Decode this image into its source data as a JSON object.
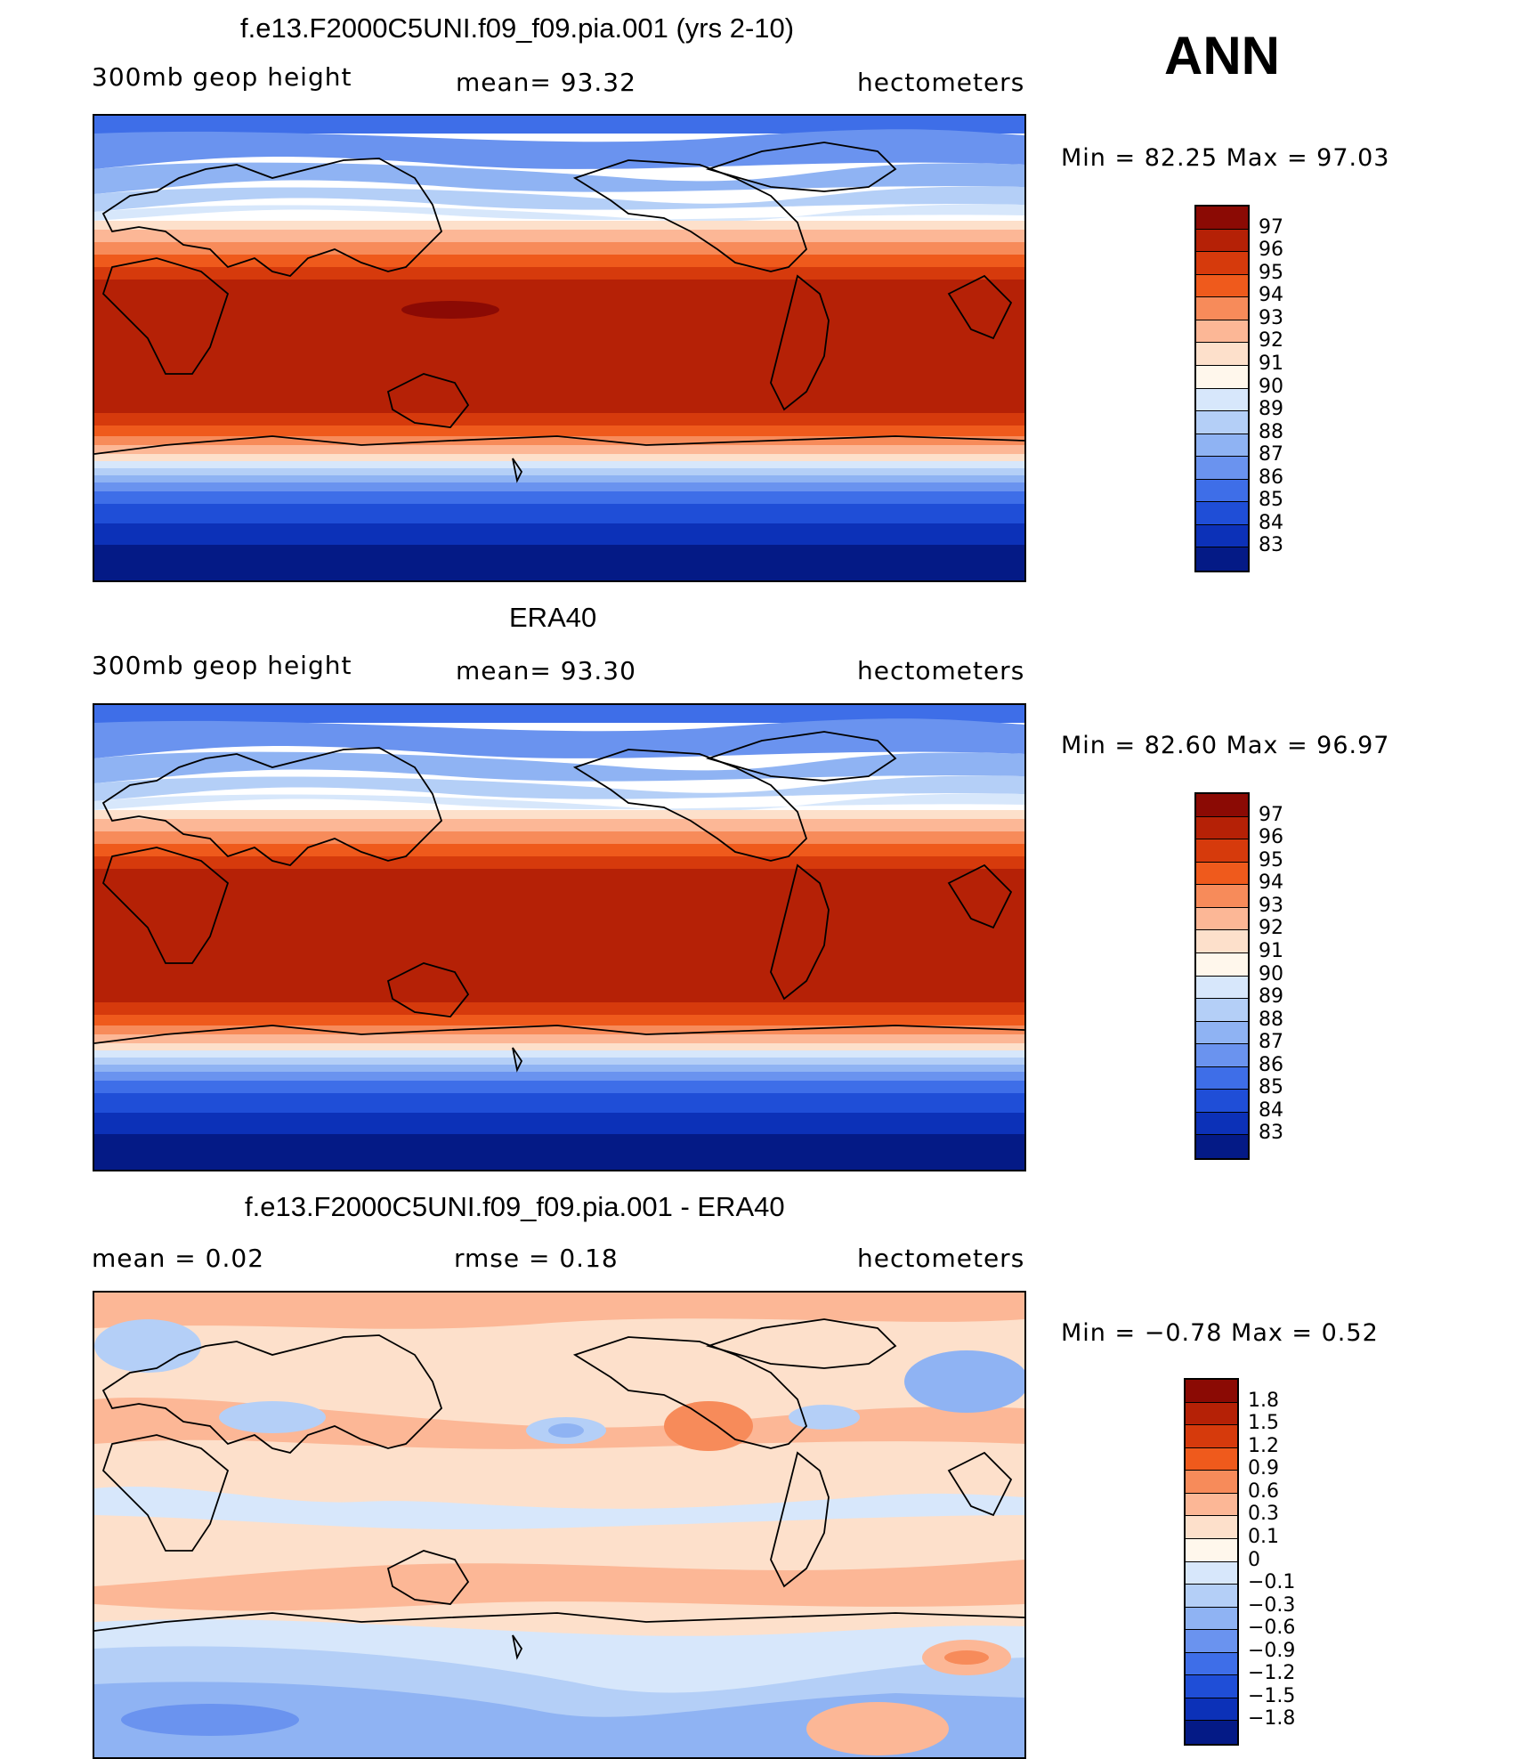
{
  "header": {
    "season": "ANN"
  },
  "panels": [
    {
      "title": "f.e13.F2000C5UNI.f09_f09.pia.001 (yrs 2-10)",
      "left_label": "300mb  geop  height",
      "center_label": "mean=   93.32",
      "right_label": "hectometers",
      "minmax": "Min  =    82.25  Max  =    97.03",
      "colorbar": {
        "labels": [
          "97",
          "96",
          "95",
          "94",
          "93",
          "92",
          "91",
          "90",
          "89",
          "88",
          "87",
          "86",
          "85",
          "84",
          "83"
        ],
        "colors": [
          "#8b0a04",
          "#b52106",
          "#d63a0c",
          "#ef5a1c",
          "#f78b5a",
          "#fcb796",
          "#fde0cb",
          "#fff7ec",
          "#d7e7fb",
          "#b4cff7",
          "#8fb3f3",
          "#6a93ef",
          "#3e6ee8",
          "#1f4ed7",
          "#0c31b8",
          "#041a86"
        ]
      }
    },
    {
      "title": "ERA40",
      "left_label": "300mb  geop  height",
      "center_label": "mean=   93.30",
      "right_label": "hectometers",
      "minmax": "Min  =    82.60  Max  =    96.97",
      "colorbar": {
        "labels": [
          "97",
          "96",
          "95",
          "94",
          "93",
          "92",
          "91",
          "90",
          "89",
          "88",
          "87",
          "86",
          "85",
          "84",
          "83"
        ],
        "colors": [
          "#8b0a04",
          "#b52106",
          "#d63a0c",
          "#ef5a1c",
          "#f78b5a",
          "#fcb796",
          "#fde0cb",
          "#fff7ec",
          "#d7e7fb",
          "#b4cff7",
          "#8fb3f3",
          "#6a93ef",
          "#3e6ee8",
          "#1f4ed7",
          "#0c31b8",
          "#041a86"
        ]
      }
    },
    {
      "title": "f.e13.F2000C5UNI.f09_f09.pia.001 - ERA40",
      "left_label": "mean  =     0.02",
      "center_label": "rmse  =     0.18",
      "right_label": "hectometers",
      "minmax": "Min  =   −0.78  Max  =     0.52",
      "colorbar": {
        "labels": [
          "1.8",
          "1.5",
          "1.2",
          "0.9",
          "0.6",
          "0.3",
          "0.1",
          "0",
          "−0.1",
          "−0.3",
          "−0.6",
          "−0.9",
          "−1.2",
          "−1.5",
          "−1.8"
        ],
        "colors": [
          "#8b0a04",
          "#b52106",
          "#d63a0c",
          "#ef5a1c",
          "#f78b5a",
          "#fcb796",
          "#fde0cb",
          "#fff7ec",
          "#d7e7fb",
          "#b4cff7",
          "#8fb3f3",
          "#6a93ef",
          "#3e6ee8",
          "#1f4ed7",
          "#0c31b8",
          "#041a86"
        ]
      }
    }
  ]
}
